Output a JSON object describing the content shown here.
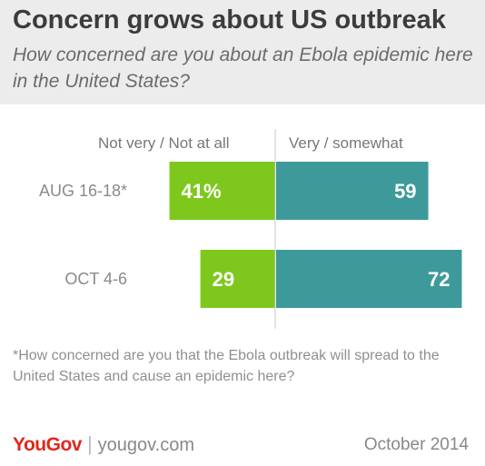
{
  "header": {
    "title": "Concern grows about US outbreak",
    "subtitle": "How concerned are you about an Ebola epidemic here in the United States?"
  },
  "chart_data": {
    "type": "bar",
    "orientation": "horizontal-diverging",
    "categories": [
      "AUG 16-18*",
      "OCT 4-6"
    ],
    "series": [
      {
        "name": "Not very / Not at all",
        "values": [
          41,
          29
        ],
        "labels": [
          "41%",
          "29"
        ],
        "color": "#7ec81d"
      },
      {
        "name": "Very / somewhat",
        "values": [
          59,
          72
        ],
        "labels": [
          "59",
          "72"
        ],
        "color": "#3e9a9a"
      }
    ],
    "xlim": [
      0,
      100
    ],
    "grid": false,
    "legend": "top"
  },
  "footnote": "*How concerned are you that the Ebola outbreak will spread to the United States and cause an epidemic here?",
  "footer": {
    "logo": "YouGov",
    "separator": "|",
    "url": "yougov.com",
    "date": "October 2014"
  },
  "colors": {
    "header_bg": "#ececec",
    "negative": "#7ec81d",
    "positive": "#3e9a9a",
    "brand": "#e0271b"
  }
}
